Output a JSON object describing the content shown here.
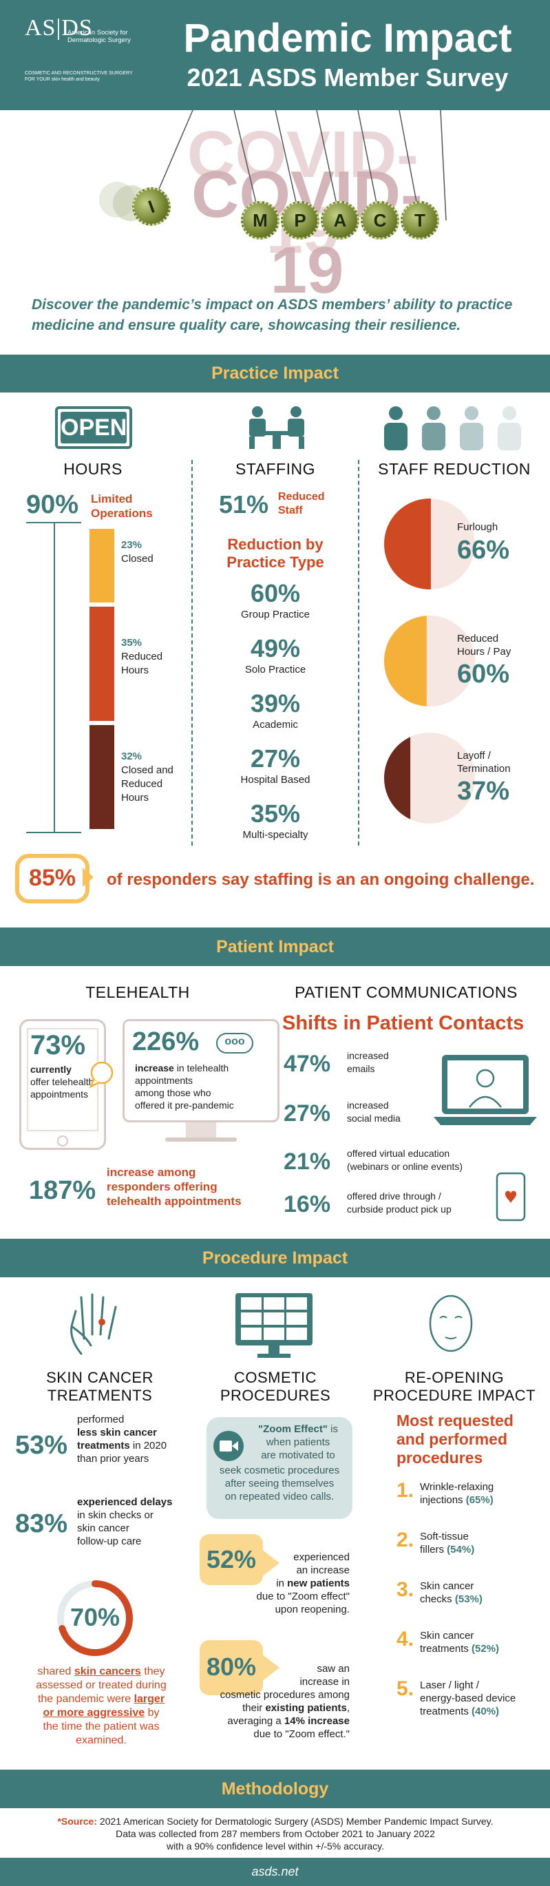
{
  "header": {
    "logo_main": "AS|DS",
    "logo_line1": "American Society for",
    "logo_line2": "Dermatologic Surgery",
    "logo_tag1": "COSMETIC AND RECONSTRUCTIVE SURGERY",
    "logo_tag2": "FOR YOUR skin health and beauty",
    "title": "Pandemic Impact",
    "subtitle": "2021 ASDS Member Survey"
  },
  "hero": {
    "covid_text": "COVID-19",
    "impact_letters": [
      "I",
      "M",
      "P",
      "A",
      "C",
      "T"
    ]
  },
  "intro": "Discover the pandemic’s impact on ASDS members’ ability to practice medicine and ensure quality care, showcasing their resilience.",
  "practice": {
    "band_title": "Practice Impact",
    "open_sign": "OPEN",
    "hours": {
      "heading": "HOURS",
      "limited_pct": "90%",
      "limited_label_1": "Limited",
      "limited_label_2": "Operations",
      "segments": [
        {
          "pct": "23%",
          "label": "Closed",
          "value": 23,
          "color": "#f5b03a"
        },
        {
          "pct": "35%",
          "label": "Reduced Hours",
          "value": 35,
          "color": "#cf4a22"
        },
        {
          "pct": "32%",
          "label": "Closed and Reduced Hours",
          "value": 32,
          "color": "#6b2a1c"
        }
      ]
    },
    "staffing": {
      "heading": "STAFFING",
      "reduced_pct": "51%",
      "reduced_label_1": "Reduced",
      "reduced_label_2": "Staff",
      "subheading_1": "Reduction by",
      "subheading_2": "Practice Type",
      "types": [
        {
          "pct": "60%",
          "label": "Group Practice"
        },
        {
          "pct": "49%",
          "label": "Solo Practice"
        },
        {
          "pct": "39%",
          "label": "Academic"
        },
        {
          "pct": "27%",
          "label": "Hospital Based"
        },
        {
          "pct": "35%",
          "label": "Multi-specialty"
        }
      ]
    },
    "reduction": {
      "heading": "STAFF REDUCTION",
      "items": [
        {
          "label_1": "Furlough",
          "label_2": "",
          "pct": "66%",
          "value": 66,
          "color": "#cf4a22"
        },
        {
          "label_1": "Reduced",
          "label_2": "Hours / Pay",
          "pct": "60%",
          "value": 60,
          "color": "#f5b03a"
        },
        {
          "label_1": "Layoff /",
          "label_2": "Termination",
          "pct": "37%",
          "value": 37,
          "color": "#6b2a1c"
        }
      ]
    },
    "callout_pct": "85%",
    "callout_text": "of responders say staffing is an an ongoing challenge."
  },
  "patient": {
    "band_title": "Patient Impact",
    "telehealth": {
      "heading": "TELEHEALTH",
      "tablet_pct": "73%",
      "tablet_bold_1": "currently",
      "tablet_text": "offer telehealth appointments",
      "monitor_pct": "226%",
      "monitor_bold": "increase",
      "monitor_text_1": "in telehealth",
      "monitor_text_2": "appointments",
      "monitor_text_3": "among those who",
      "monitor_text_4": "offered it pre-pandemic",
      "bottom_pct": "187%",
      "bottom_text_1": "increase among",
      "bottom_text_2": "responders offering",
      "bottom_text_3": "telehealth appointments"
    },
    "communications": {
      "heading": "PATIENT COMMUNICATIONS",
      "subheading": "Shifts in Patient Contacts",
      "items": [
        {
          "pct": "47%",
          "line1": "increased",
          "line2": "emails"
        },
        {
          "pct": "27%",
          "line1": "increased",
          "line2": "social media"
        },
        {
          "pct": "21%",
          "line1": "offered virtual education",
          "line2": "(webinars or online events)"
        },
        {
          "pct": "16%",
          "line1": "offered drive through /",
          "line2": "curbside product pick up"
        }
      ]
    }
  },
  "procedure": {
    "band_title": "Procedure Impact",
    "skin": {
      "heading_1": "SKIN CANCER",
      "heading_2": "TREATMENTS",
      "stat1_pct": "53%",
      "stat1_l1": "performed",
      "stat1_l2": "less skin cancer",
      "stat1_l3": "treatments",
      "stat1_l3b": " in 2020",
      "stat1_l4": "than prior years",
      "stat2_pct": "83%",
      "stat2_l1": "experienced delays",
      "stat2_l2": "in skin checks or",
      "stat2_l3": "skin cancer",
      "stat2_l4": "follow-up care",
      "ring_pct": "70%",
      "ring_value": 70,
      "ring_l1a": "shared ",
      "ring_l1b": "skin cancers",
      "ring_l1c": " they",
      "ring_l2": "assessed or treated during",
      "ring_l3a": "the pandemic were ",
      "ring_l3b": "larger",
      "ring_l4a": "or more aggressive",
      "ring_l4b": " by",
      "ring_l5": "the time the patient was",
      "ring_l6": "examined."
    },
    "cosmetic": {
      "heading_1": "COSMETIC",
      "heading_2": "PROCEDURES",
      "zoom_title": "\"Zoom Effect\"",
      "zoom_l1": "is",
      "zoom_l2": "when patients",
      "zoom_l3": "are motivated to",
      "zoom_l4": "seek cosmetic procedures",
      "zoom_l5": "after seeing themselves",
      "zoom_l6": "on repeated video calls.",
      "stat1_pct": "52%",
      "stat1_l1": "experienced",
      "stat1_l2": "an increase",
      "stat1_l3a": "in ",
      "stat1_l3b": "new patients",
      "stat1_l4": "due to \"Zoom effect\"",
      "stat1_l5": "upon reopening.",
      "stat2_pct": "80%",
      "stat2_l1": "saw an",
      "stat2_l2": "increase in",
      "stat2_l3": "cosmetic procedures among",
      "stat2_l4a": "their ",
      "stat2_l4b": "existing patients",
      "stat2_l4c": ",",
      "stat2_l5a": "averaging a ",
      "stat2_l5b": "14% increase",
      "stat2_l6": "due to \"Zoom effect.\""
    },
    "reopening": {
      "heading_1": "RE-OPENING",
      "heading_2": "PROCEDURE IMPACT",
      "sub_1": "Most requested",
      "sub_2": "and performed",
      "sub_3": "procedures",
      "items": [
        {
          "num": "1.",
          "l1": "Wrinkle-relaxing",
          "l2": "injections ",
          "pct": "(65%)"
        },
        {
          "num": "2.",
          "l1": "Soft-tissue",
          "l2": "fillers ",
          "pct": "(54%)"
        },
        {
          "num": "3.",
          "l1": "Skin cancer",
          "l2": "checks ",
          "pct": "(53%)"
        },
        {
          "num": "4.",
          "l1": "Skin cancer",
          "l2": "treatments ",
          "pct": "(52%)"
        },
        {
          "num": "5.",
          "l1": "Laser / light /",
          "l2": "energy-based device",
          "l3": "treatments ",
          "pct": "(40%)"
        }
      ]
    }
  },
  "methodology": {
    "band_title": "Methodology",
    "source_label": "*Source:",
    "line1": " 2021 American Society for Dermatologic Surgery (ASDS) Member Pandemic Impact Survey.",
    "line2": "Data was collected from 287 members from October 2021 to January 2022",
    "line3": "with a 90% confidence level within +/-5% accuracy.",
    "footer": "asds.net"
  },
  "colors": {
    "teal": "#3f7a7b",
    "orange": "#cf4a22",
    "gold": "#f5b03a",
    "brown": "#6b2a1c"
  }
}
